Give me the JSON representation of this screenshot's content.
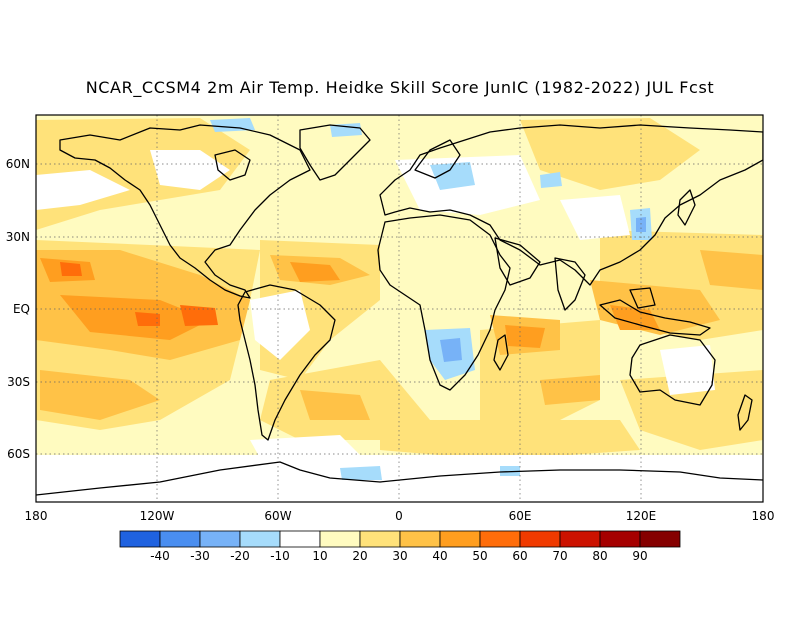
{
  "title": "NCAR_CCSM4 2m Air Temp. Heidke Skill Score JunIC (1982-2022) JUL Fcst",
  "map": {
    "lat_labels": [
      "60N",
      "30N",
      "EQ",
      "30S",
      "60S"
    ],
    "lon_labels": [
      "180",
      "120W",
      "60W",
      "0",
      "60E",
      "120E",
      "180"
    ],
    "graticule": "dotted",
    "land_outline_color": "#000000"
  },
  "colorbar": {
    "labels": [
      "-40",
      "-30",
      "-20",
      "-10",
      "10",
      "20",
      "30",
      "40",
      "50",
      "60",
      "70",
      "80",
      "90"
    ],
    "colors": [
      "#1f62e0",
      "#4a8ef0",
      "#77b2f7",
      "#a6dcfb",
      "#ffffff",
      "#fffbc0",
      "#ffe27a",
      "#ffc247",
      "#ff9e1f",
      "#ff6d0a",
      "#f03a00",
      "#cc1200",
      "#a50000",
      "#850000"
    ]
  },
  "field_colors": {
    "white": "#ffffff",
    "pale_yellow": "#fffbc0",
    "yellow": "#ffe27a",
    "light_orange": "#ffc247",
    "orange": "#ff9e1f",
    "deep_orange": "#ff6d0a",
    "light_blue": "#a6dcfb",
    "blue": "#77b2f7"
  }
}
